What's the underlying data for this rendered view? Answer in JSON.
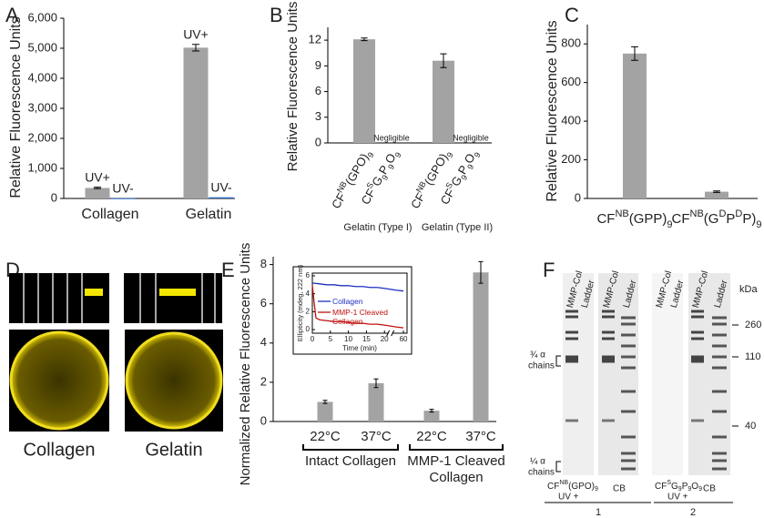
{
  "chart_data": [
    {
      "type": "bar",
      "panel": "A",
      "ylabel": "Relative Fluorescence Units",
      "categories": [
        "Collagen",
        "Gelatin"
      ],
      "series": [
        {
          "name": "UV+",
          "color": "#a3a3a3",
          "values": [
            350,
            5020
          ],
          "errors": [
            25,
            110
          ]
        },
        {
          "name": "UV-",
          "color": "#2e6cc8",
          "values": [
            8,
            40
          ],
          "errors": [
            null,
            null
          ]
        }
      ],
      "ylim": [
        0,
        6000
      ],
      "yticks": [
        0,
        {
          "value": 1000,
          "label": "1,000"
        },
        {
          "value": 2000,
          "label": "2,000"
        },
        {
          "value": 3000,
          "label": "3,000"
        },
        {
          "value": 4000,
          "label": "4,000"
        },
        {
          "value": 5000,
          "label": "5,000"
        },
        {
          "value": 6000,
          "label": "6,000"
        }
      ]
    },
    {
      "type": "bar",
      "panel": "B",
      "ylabel": "Relative Fluorescence Units",
      "categories": [
        [
          {
            "text": "CF"
          },
          {
            "text": "NB",
            "script": "sup"
          },
          {
            "text": "(GPO)"
          },
          {
            "text": "9",
            "script": "sub"
          }
        ],
        [
          {
            "text": "CF"
          },
          {
            "text": "S",
            "script": "sup"
          },
          {
            "text": "G"
          },
          {
            "text": "9",
            "script": "sub"
          },
          {
            "text": "P"
          },
          {
            "text": "9",
            "script": "sub"
          },
          {
            "text": "O"
          },
          {
            "text": "9",
            "script": "sub"
          }
        ],
        [
          {
            "text": "CF"
          },
          {
            "text": "NB",
            "script": "sup"
          },
          {
            "text": "(GPO)"
          },
          {
            "text": "9",
            "script": "sub"
          }
        ],
        [
          {
            "text": "CF"
          },
          {
            "text": "S",
            "script": "sup"
          },
          {
            "text": "G"
          },
          {
            "text": "9",
            "script": "sub"
          },
          {
            "text": "P"
          },
          {
            "text": "9",
            "script": "sub"
          },
          {
            "text": "O"
          },
          {
            "text": "9",
            "script": "sub"
          }
        ]
      ],
      "values": [
        12.1,
        null,
        9.6,
        null
      ],
      "errors": [
        0.15,
        null,
        0.8,
        null
      ],
      "value_labels": [
        null,
        "Negligible",
        null,
        "Negligible"
      ],
      "groups": [
        [
          "Gelatin (Type I)"
        ],
        [
          "Gelatin (Type II)"
        ]
      ],
      "group_brackets": false,
      "color": "#a3a3a3",
      "ylim": [
        0,
        13.5
      ],
      "yticks": [
        0,
        3,
        6,
        9,
        12
      ]
    },
    {
      "type": "bar",
      "panel": "C",
      "ylabel": "Relative Fluorescence Units",
      "categories": [
        [
          {
            "text": "CF"
          },
          {
            "text": "NB",
            "script": "sup"
          },
          {
            "text": "(GPP)"
          },
          {
            "text": "9",
            "script": "sub"
          }
        ],
        [
          {
            "text": "CF"
          },
          {
            "text": "NB",
            "script": "sup"
          },
          {
            "text": "(G"
          },
          {
            "text": "D",
            "script": "sup"
          },
          {
            "text": "P"
          },
          {
            "text": "D",
            "script": "sup"
          },
          {
            "text": "P)"
          },
          {
            "text": "9",
            "script": "sub"
          }
        ]
      ],
      "values": [
        750,
        35
      ],
      "errors": [
        35,
        4
      ],
      "color": "#a3a3a3",
      "ylim": [
        0,
        900
      ],
      "yticks": [
        0,
        200,
        400,
        600,
        800
      ]
    },
    {
      "type": "bar",
      "panel": "E",
      "ylabel": "Normalized Relative Fluorescence Units",
      "categories": [
        "22°C",
        "37°C",
        "22°C",
        "37°C"
      ],
      "values": [
        1.0,
        1.95,
        0.55,
        7.6
      ],
      "errors": [
        0.08,
        0.22,
        0.07,
        0.55
      ],
      "groups": [
        [
          "Intact Collagen"
        ],
        [
          "MMP-1 Cleaved",
          "Collagen"
        ]
      ],
      "group_brackets": true,
      "color": "#a3a3a3",
      "ylim": [
        0,
        8.4
      ],
      "yticks": [
        0,
        2,
        4,
        6,
        8
      ]
    },
    {
      "type": "line",
      "xlabel": "Time (min)",
      "ylabel": "Ellipticity (mdeg, 222 nm)",
      "xlim": [
        0,
        61
      ],
      "xbreak": [
        21,
        57
      ],
      "xticks": [
        0,
        5,
        10,
        15,
        20,
        60
      ],
      "ylim": [
        -0.4,
        6.3
      ],
      "yticks": [
        0,
        2,
        4,
        6
      ],
      "series": [
        {
          "name": "Collagen",
          "color": "#1f2fc0",
          "x": [
            0,
            2,
            4,
            6,
            8,
            10,
            12,
            14,
            16,
            18,
            20,
            58,
            60
          ],
          "values": [
            5.2,
            5.1,
            5.0,
            5.0,
            4.9,
            4.9,
            4.8,
            4.8,
            4.7,
            4.7,
            4.6,
            4.4,
            4.3
          ]
        },
        {
          "name": "MMP-1 Cleaved Collagen",
          "color": "#c01010",
          "x": [
            0,
            0.5,
            1,
            2,
            4,
            6,
            8,
            10,
            12,
            14,
            16,
            18,
            20,
            58,
            60
          ],
          "values": [
            5.0,
            3.0,
            1.3,
            1.1,
            1.0,
            0.9,
            0.9,
            0.8,
            0.7,
            0.7,
            0.6,
            0.6,
            0.5,
            0.3,
            0.2
          ]
        }
      ]
    }
  ],
  "figure": {
    "panel_d": {
      "label": "D",
      "captions": [
        "Collagen",
        "Gelatin"
      ]
    },
    "panel_f": {
      "label": "F",
      "unit": "kDa",
      "markers": [
        "260",
        "110",
        "40"
      ],
      "chains": [
        [
          "¾ α",
          "chains"
        ],
        [
          "¼ α",
          "chains"
        ]
      ],
      "gels": [
        {
          "lanes": [
            "MMP-Col",
            "Ladder"
          ],
          "probe": [
            {
              "text": "CF"
            },
            {
              "text": "NB",
              "script": "sup"
            },
            {
              "text": "(GPO)"
            },
            {
              "text": "9",
              "script": "sub"
            }
          ],
          "note": "UV +"
        },
        {
          "lanes": [
            "MMP-Col",
            "Ladder"
          ],
          "stain": "CB"
        },
        {
          "lanes": [
            "MMP-Col",
            "Ladder"
          ],
          "probe": [
            {
              "text": "CF"
            },
            {
              "text": "S",
              "script": "sup"
            },
            {
              "text": "G"
            },
            {
              "text": "9",
              "script": "sub"
            },
            {
              "text": "P"
            },
            {
              "text": "9",
              "script": "sub"
            },
            {
              "text": "O"
            },
            {
              "text": "9",
              "script": "sub"
            }
          ],
          "note": "UV +"
        },
        {
          "lanes": [
            "MMP-Col",
            "Ladder"
          ],
          "stain": "CB"
        }
      ],
      "experiments": [
        "1",
        "2"
      ]
    }
  }
}
